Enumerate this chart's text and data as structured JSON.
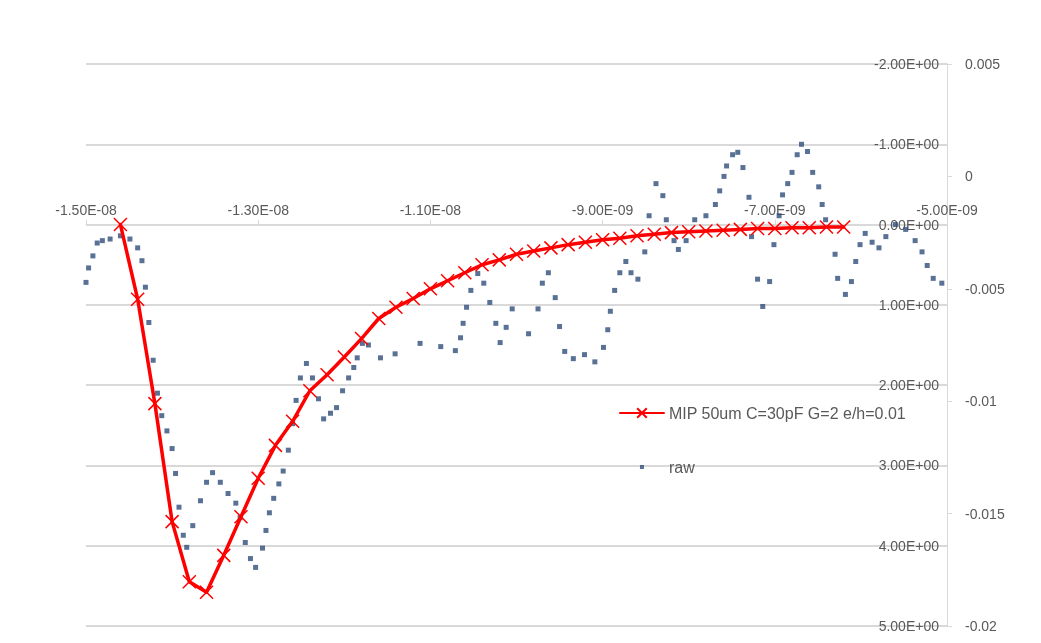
{
  "chart_data": {
    "type": "line",
    "xlim": [
      -1.5e-08,
      -5e-09
    ],
    "xticks": [
      {
        "value": -1.5e-08,
        "label": "-1.50E-08"
      },
      {
        "value": -1.3e-08,
        "label": "-1.30E-08"
      },
      {
        "value": -1.1e-08,
        "label": "-1.10E-08"
      },
      {
        "value": -9e-09,
        "label": "-9.00E-09"
      },
      {
        "value": -7e-09,
        "label": "-7.00E-09"
      },
      {
        "value": -5e-09,
        "label": "-5.00E-09"
      }
    ],
    "ylim": [
      5,
      -2
    ],
    "yticks": [
      {
        "value": -2,
        "label": "-2.00E+00"
      },
      {
        "value": -1,
        "label": "-1.00E+00"
      },
      {
        "value": 0,
        "label": "0.00E+00"
      },
      {
        "value": 1,
        "label": "1.00E+00"
      },
      {
        "value": 2,
        "label": "2.00E+00"
      },
      {
        "value": 3,
        "label": "3.00E+00"
      },
      {
        "value": 4,
        "label": "4.00E+00"
      },
      {
        "value": 5,
        "label": "5.00E+00"
      }
    ],
    "y2lim": [
      -0.02,
      0.005
    ],
    "y2ticks": [
      -0.02,
      -0.015,
      -0.01,
      -0.005,
      0,
      0.005
    ],
    "grid": "y",
    "legend": "right",
    "series": [
      {
        "name": "MIP 50um C=30pF G=2 e/h=0.01",
        "color": "#ff0000",
        "marker": "cross",
        "line_style": "solid",
        "x": [
          -1.46e-08,
          -1.44e-08,
          -1.42e-08,
          -1.4e-08,
          -1.38e-08,
          -1.36e-08,
          -1.34e-08,
          -1.32e-08,
          -1.3e-08,
          -1.28e-08,
          -1.26e-08,
          -1.24e-08,
          -1.22e-08,
          -1.2e-08,
          -1.18e-08,
          -1.16e-08,
          -1.14e-08,
          -1.12e-08,
          -1.1e-08,
          -1.08e-08,
          -1.06e-08,
          -1.04e-08,
          -1.02e-08,
          -1e-08,
          -9.8e-09,
          -9.6e-09,
          -9.4e-09,
          -9.2e-09,
          -9e-09,
          -8.8e-09,
          -8.6e-09,
          -8.4e-09,
          -8.2e-09,
          -8e-09,
          -7.8e-09,
          -7.6e-09,
          -7.4e-09,
          -7.2e-09,
          -7e-09,
          -6.8e-09,
          -6.6e-09,
          -6.4e-09,
          -6.2e-09
        ],
        "values": [
          0,
          0.93,
          2.23,
          3.7,
          4.45,
          4.58,
          4.12,
          3.64,
          3.16,
          2.75,
          2.45,
          2.07,
          1.87,
          1.65,
          1.42,
          1.17,
          1.03,
          0.92,
          0.8,
          0.7,
          0.6,
          0.5,
          0.44,
          0.37,
          0.33,
          0.29,
          0.25,
          0.22,
          0.19,
          0.17,
          0.14,
          0.12,
          0.1,
          0.09,
          0.08,
          0.07,
          0.06,
          0.05,
          0.05,
          0.04,
          0.04,
          0.03,
          0.03
        ]
      },
      {
        "name": "raw",
        "type": "scatter",
        "color": "#2e4d7b",
        "marker": "square",
        "x": [
          -1.5e-08,
          -1.497e-08,
          -1.492e-08,
          -1.487e-08,
          -1.481e-08,
          -1.472e-08,
          -1.46e-08,
          -1.449e-08,
          -1.44e-08,
          -1.435e-08,
          -1.431e-08,
          -1.427e-08,
          -1.422e-08,
          -1.417e-08,
          -1.412e-08,
          -1.406e-08,
          -1.4e-08,
          -1.396e-08,
          -1.392e-08,
          -1.387e-08,
          -1.383e-08,
          -1.376e-08,
          -1.367e-08,
          -1.36e-08,
          -1.353e-08,
          -1.344e-08,
          -1.335e-08,
          -1.326e-08,
          -1.321e-08,
          -1.315e-08,
          -1.309e-08,
          -1.303e-08,
          -1.295e-08,
          -1.291e-08,
          -1.287e-08,
          -1.282e-08,
          -1.276e-08,
          -1.271e-08,
          -1.265e-08,
          -1.26e-08,
          -1.256e-08,
          -1.251e-08,
          -1.244e-08,
          -1.237e-08,
          -1.23e-08,
          -1.224e-08,
          -1.216e-08,
          -1.209e-08,
          -1.202e-08,
          -1.195e-08,
          -1.189e-08,
          -1.185e-08,
          -1.179e-08,
          -1.172e-08,
          -1.158e-08,
          -1.141e-08,
          -1.112e-08,
          -1.088e-08,
          -1.071e-08,
          -1.065e-08,
          -1.062e-08,
          -1.058e-08,
          -1.053e-08,
          -1.045e-08,
          -1.038e-08,
          -1.031e-08,
          -1.024e-08,
          -1.019e-08,
          -1.012e-08,
          -1.005e-08,
          -9.86e-09,
          -9.75e-09,
          -9.7e-09,
          -9.63e-09,
          -9.55e-09,
          -9.5e-09,
          -9.44e-09,
          -9.34e-09,
          -9.21e-09,
          -9.09e-09,
          -8.99e-09,
          -8.94e-09,
          -8.91e-09,
          -8.86e-09,
          -8.8e-09,
          -8.73e-09,
          -8.67e-09,
          -8.59e-09,
          -8.51e-09,
          -8.46e-09,
          -8.38e-09,
          -8.3e-09,
          -8.26e-09,
          -8.17e-09,
          -8.12e-09,
          -8.03e-09,
          -7.93e-09,
          -7.8e-09,
          -7.69e-09,
          -7.64e-09,
          -7.59e-09,
          -7.56e-09,
          -7.49e-09,
          -7.43e-09,
          -7.37e-09,
          -7.3e-09,
          -7.27e-09,
          -7.2e-09,
          -7.14e-09,
          -7.06e-09,
          -7.01e-09,
          -6.95e-09,
          -6.91e-09,
          -6.85e-09,
          -6.8e-09,
          -6.74e-09,
          -6.69e-09,
          -6.62e-09,
          -6.56e-09,
          -6.49e-09,
          -6.45e-09,
          -6.41e-09,
          -6.3e-09,
          -6.27e-09,
          -6.18e-09,
          -6.11e-09,
          -6.06e-09,
          -6.01e-09,
          -5.95e-09,
          -5.87e-09,
          -5.79e-09,
          -5.71e-09,
          -5.6e-09,
          -5.48e-09,
          -5.37e-09,
          -5.29e-09,
          -5.23e-09,
          -5.16e-09,
          -5.06e-09
        ],
        "values": [
          0.72,
          0.54,
          0.39,
          0.23,
          0.2,
          0.18,
          0.14,
          0.18,
          0.29,
          0.45,
          0.78,
          1.22,
          1.69,
          2.1,
          2.38,
          2.57,
          2.79,
          3.1,
          3.52,
          3.87,
          4.02,
          3.75,
          3.44,
          3.21,
          3.09,
          3.21,
          3.35,
          3.47,
          3.65,
          3.96,
          4.16,
          4.27,
          4.03,
          3.81,
          3.59,
          3.41,
          3.23,
          3.07,
          2.81,
          2.48,
          2.19,
          1.91,
          1.73,
          1.91,
          2.17,
          2.42,
          2.35,
          2.28,
          2.07,
          1.91,
          1.78,
          1.66,
          1.48,
          1.5,
          1.66,
          1.61,
          1.48,
          1.52,
          1.57,
          1.41,
          1.23,
          1.03,
          0.82,
          0.61,
          0.73,
          0.97,
          1.23,
          1.47,
          1.28,
          1.05,
          1.36,
          1.05,
          0.73,
          0.6,
          0.91,
          1.27,
          1.58,
          1.67,
          1.62,
          1.71,
          1.53,
          1.31,
          1.08,
          0.82,
          0.6,
          0.46,
          0.6,
          0.68,
          0.34,
          -0.11,
          -0.51,
          -0.36,
          -0.06,
          0.2,
          0.31,
          0.2,
          -0.06,
          -0.11,
          -0.25,
          -0.42,
          -0.6,
          -0.73,
          -0.87,
          -0.9,
          -0.71,
          -0.34,
          0.15,
          0.68,
          1.02,
          0.71,
          0.25,
          -0.11,
          -0.37,
          -0.51,
          -0.65,
          -0.87,
          -1.0,
          -0.91,
          -0.65,
          -0.47,
          -0.25,
          -0.06,
          0.37,
          0.67,
          0.87,
          0.71,
          0.46,
          0.25,
          0.11,
          0.22,
          0.29,
          0.15,
          0,
          0.06,
          0.2,
          0.34,
          0.51,
          0.67,
          0.73
        ]
      }
    ]
  }
}
